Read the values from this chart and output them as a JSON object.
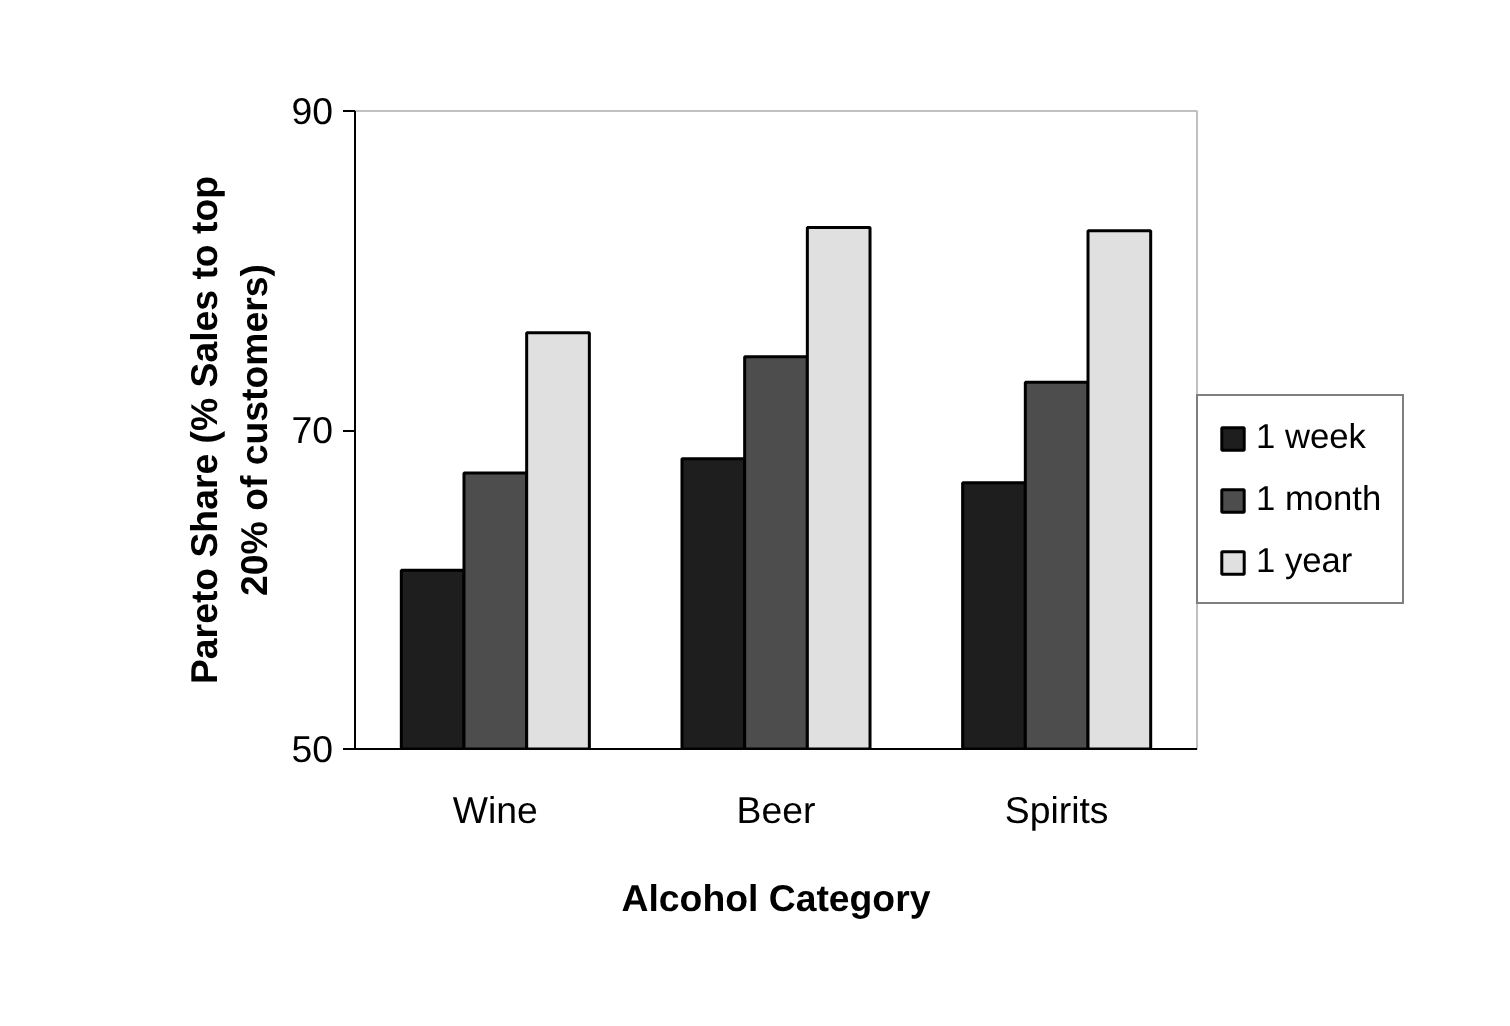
{
  "chart_data": {
    "type": "bar",
    "xlabel": "Alcohol Category",
    "ylabel": "Pareto Share (% Sales to top\n20% of customers)",
    "categories": [
      "Wine",
      "Beer",
      "Spirits"
    ],
    "series": [
      {
        "name": "1 week",
        "color": "#1e1e1e",
        "values": [
          61.2,
          68.2,
          66.7
        ]
      },
      {
        "name": "1 month",
        "color": "#4d4d4d",
        "values": [
          67.3,
          74.6,
          73.0
        ]
      },
      {
        "name": "1 year",
        "color": "#e0e0e0",
        "values": [
          76.1,
          82.7,
          82.5
        ]
      }
    ],
    "ylim": [
      50,
      90
    ],
    "yticks": [
      50,
      70,
      90
    ],
    "grid": false,
    "legend": "right"
  }
}
